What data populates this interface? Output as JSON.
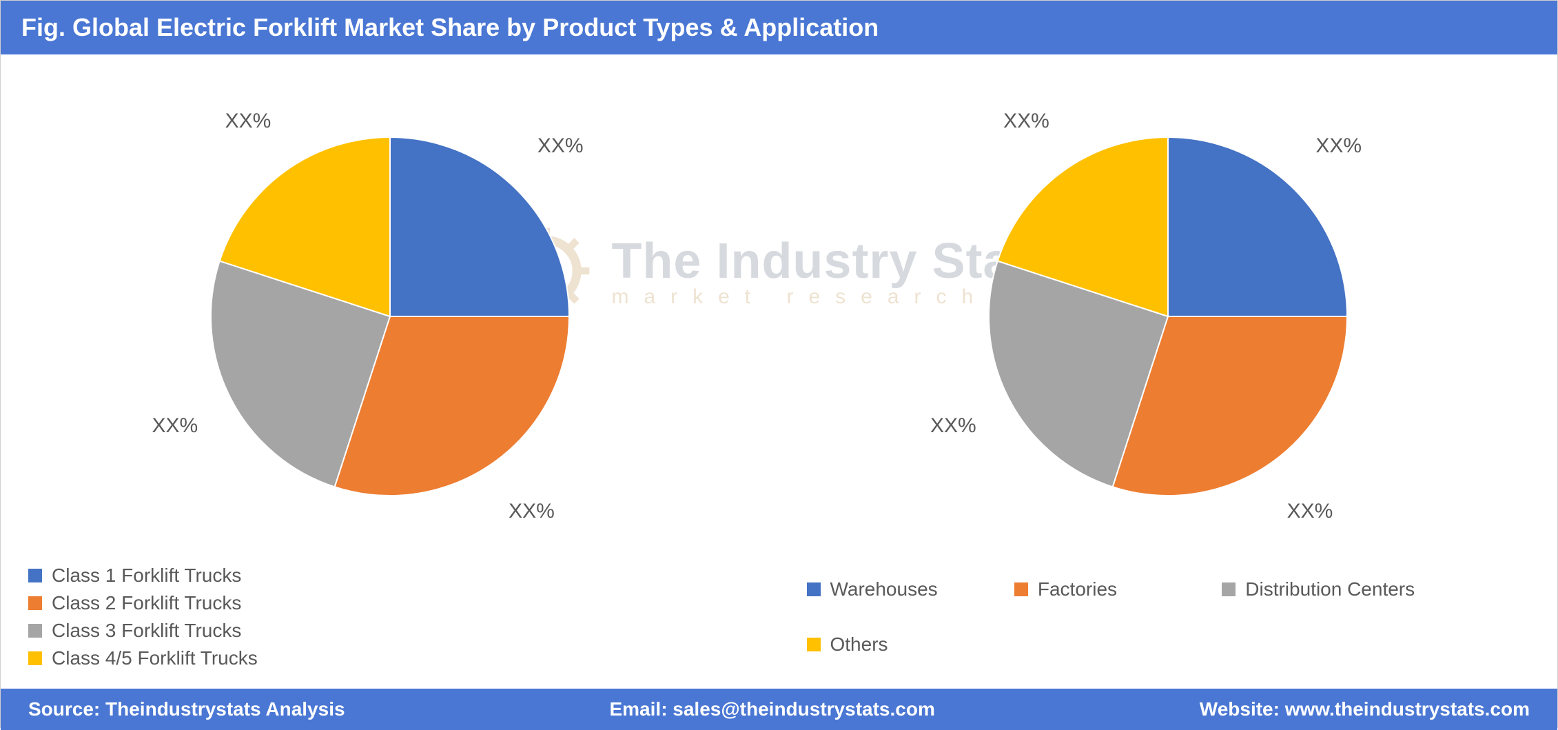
{
  "title": "Fig. Global Electric Forklift Market Share by Product Types & Application",
  "title_bar_color": "#4a77d4",
  "title_text_color": "#ffffff",
  "title_fontsize": 36,
  "body_text_color": "#595959",
  "label_fontsize": 30,
  "legend_fontsize": 28,
  "footer_bar_color": "#4a77d4",
  "footer_text_color": "#ffffff",
  "footer": {
    "source_label": "Source: Theindustrystats Analysis",
    "email_label": "Email: sales@theindustrystats.com",
    "website_label": "Website: www.theindustrystats.com"
  },
  "watermark": {
    "main": "The Industry Stats",
    "sub": "market research",
    "main_color": "#6e7b8b",
    "sub_color": "#c59a5a",
    "opacity": 0.28
  },
  "chart_left": {
    "type": "pie",
    "radius": 260,
    "label_offset": 350,
    "slices": [
      {
        "legend": "Class 1 Forklift Trucks",
        "value": 25,
        "color": "#4472c4",
        "label": "XX%"
      },
      {
        "legend": "Class 2 Forklift Trucks",
        "value": 30,
        "color": "#ed7d31",
        "label": "XX%"
      },
      {
        "legend": "Class 3 Forklift Trucks",
        "value": 25,
        "color": "#a5a5a5",
        "label": "XX%"
      },
      {
        "legend": "Class 4/5 Forklift Trucks",
        "value": 20,
        "color": "#ffc000",
        "label": "XX%"
      }
    ],
    "start_angle_deg": -90,
    "legend_columns": 2
  },
  "chart_right": {
    "type": "pie",
    "radius": 260,
    "label_offset": 350,
    "slices": [
      {
        "legend": "Warehouses",
        "value": 25,
        "color": "#4472c4",
        "label": "XX%"
      },
      {
        "legend": "Factories",
        "value": 30,
        "color": "#ed7d31",
        "label": "XX%"
      },
      {
        "legend": "Distribution Centers",
        "value": 25,
        "color": "#a5a5a5",
        "label": "XX%"
      },
      {
        "legend": "Others",
        "value": 20,
        "color": "#ffc000",
        "label": "XX%"
      }
    ],
    "start_angle_deg": -90,
    "legend_columns": 4
  }
}
